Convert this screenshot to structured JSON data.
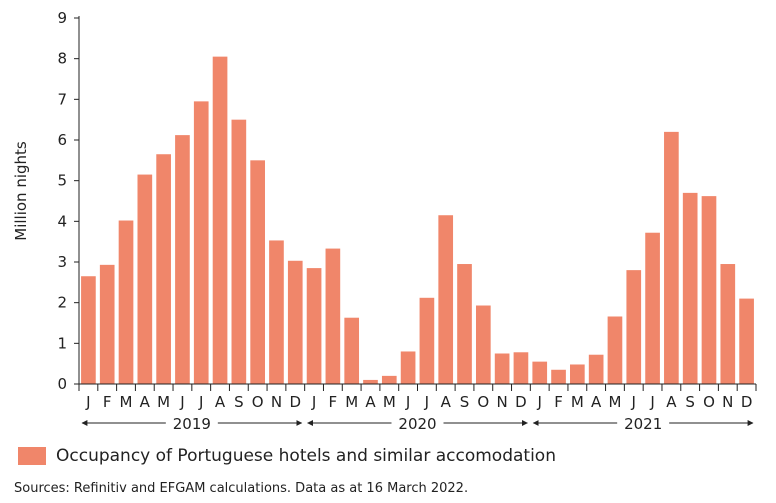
{
  "chart_data": {
    "type": "bar",
    "ylabel": "Million nights",
    "ylim": [
      0,
      9
    ],
    "yticks": [
      0,
      1,
      2,
      3,
      4,
      5,
      6,
      7,
      8,
      9
    ],
    "grid": false,
    "bar_color": "#f0866a",
    "month_labels": [
      "J",
      "F",
      "M",
      "A",
      "M",
      "J",
      "J",
      "A",
      "S",
      "O",
      "N",
      "D",
      "J",
      "F",
      "M",
      "A",
      "M",
      "J",
      "J",
      "A",
      "S",
      "O",
      "N",
      "D",
      "J",
      "F",
      "M",
      "A",
      "M",
      "J",
      "J",
      "A",
      "S",
      "O",
      "N",
      "D"
    ],
    "years": [
      "2019",
      "2020",
      "2021"
    ],
    "series": [
      {
        "name": "Occupancy of Portuguese hotels and similar accomodation",
        "values": [
          2.65,
          2.93,
          4.02,
          5.15,
          5.65,
          6.12,
          6.95,
          8.05,
          6.5,
          5.5,
          3.53,
          3.03,
          2.85,
          3.33,
          1.63,
          0.1,
          0.2,
          0.8,
          2.12,
          4.15,
          2.95,
          1.93,
          0.75,
          0.78,
          0.55,
          0.35,
          0.48,
          0.72,
          1.66,
          2.8,
          3.72,
          6.2,
          4.7,
          4.62,
          2.95,
          2.1
        ]
      }
    ]
  },
  "legend": {
    "label": "Occupancy of Portuguese hotels and similar accomodation"
  },
  "source": "Sources: Refinitiv and EFGAM calculations. Data as at 16 March 2022."
}
